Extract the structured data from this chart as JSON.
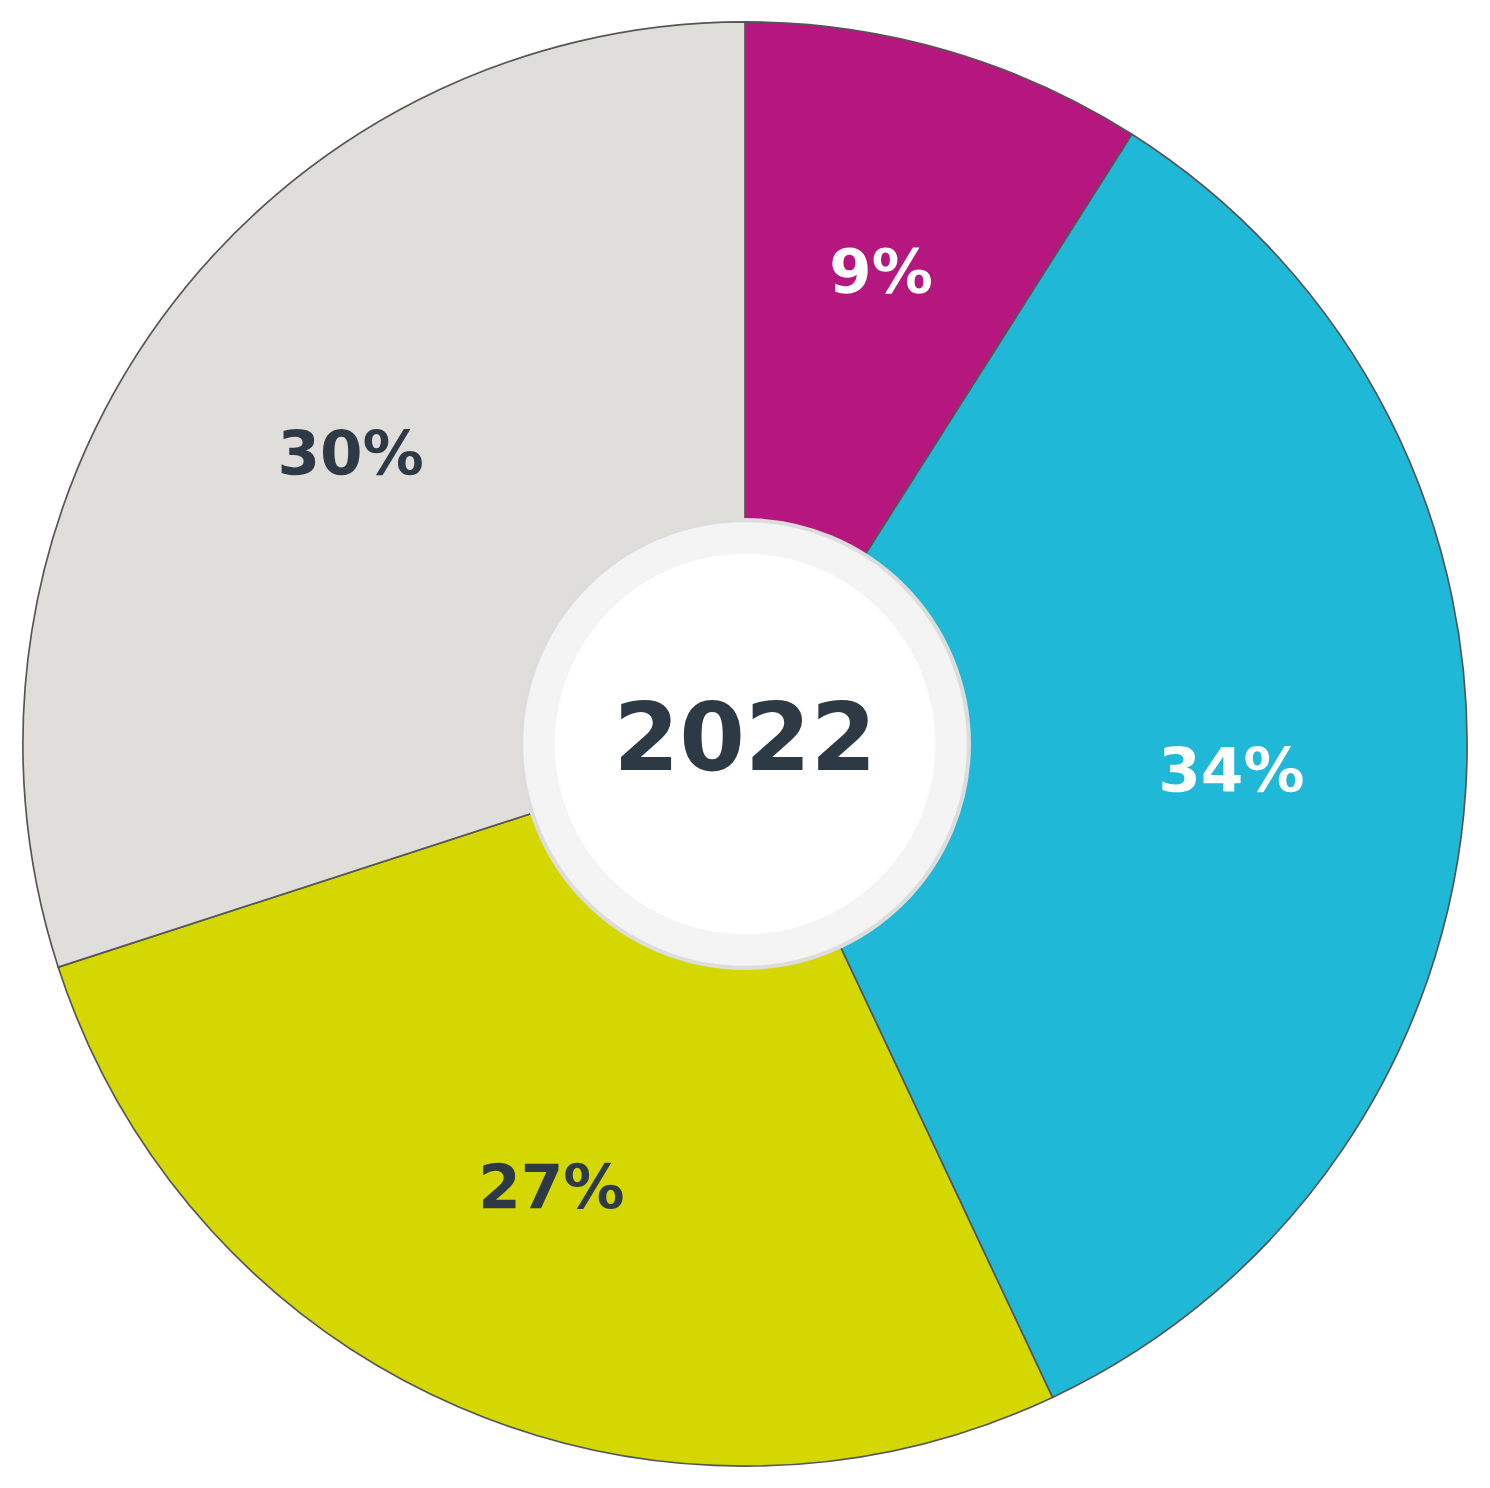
{
  "chart_data": {
    "type": "donut",
    "title": "2022",
    "categories": [
      null,
      null,
      null,
      null
    ],
    "values": [
      9,
      34,
      27,
      30
    ],
    "colors": [
      "#b5177f",
      "#1fb8d6",
      "#d4d800",
      "#e0dedb"
    ],
    "value_labels": [
      "9%",
      "34%",
      "27%",
      "30%"
    ]
  }
}
